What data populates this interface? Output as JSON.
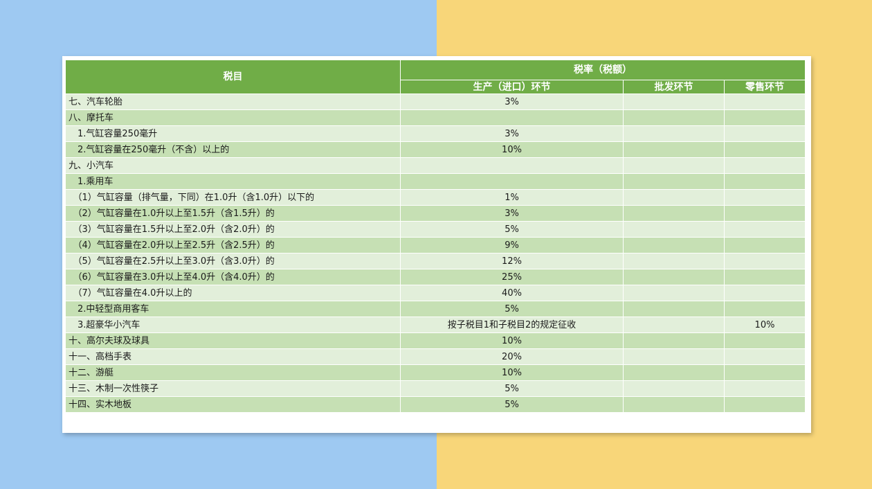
{
  "table": {
    "header": {
      "item": "税目",
      "rate_group": "税率（税额）",
      "production": "生产（进口）环节",
      "wholesale": "批发环节",
      "retail": "零售环节"
    },
    "rows": [
      {
        "item": "七、汽车轮胎",
        "production": "3%",
        "wholesale": "",
        "retail": ""
      },
      {
        "item": "八、摩托车",
        "production": "",
        "wholesale": "",
        "retail": ""
      },
      {
        "item": "　1.气缸容量250毫升",
        "production": "3%",
        "wholesale": "",
        "retail": ""
      },
      {
        "item": "　2.气缸容量在250毫升（不含）以上的",
        "production": "10%",
        "wholesale": "",
        "retail": ""
      },
      {
        "item": "九、小汽车",
        "production": "",
        "wholesale": "",
        "retail": ""
      },
      {
        "item": "　1.乘用车",
        "production": "",
        "wholesale": "",
        "retail": ""
      },
      {
        "item": "　（1）气缸容量（排气量，下同）在1.0升（含1.0升）以下的",
        "production": "1%",
        "wholesale": "",
        "retail": ""
      },
      {
        "item": "　（2）气缸容量在1.0升以上至1.5升（含1.5升）的",
        "production": "3%",
        "wholesale": "",
        "retail": ""
      },
      {
        "item": "　（3）气缸容量在1.5升以上至2.0升（含2.0升）的",
        "production": "5%",
        "wholesale": "",
        "retail": ""
      },
      {
        "item": "　（4）气缸容量在2.0升以上至2.5升（含2.5升）的",
        "production": "9%",
        "wholesale": "",
        "retail": ""
      },
      {
        "item": "　（5）气缸容量在2.5升以上至3.0升（含3.0升）的",
        "production": "12%",
        "wholesale": "",
        "retail": ""
      },
      {
        "item": "　（6）气缸容量在3.0升以上至4.0升（含4.0升）的",
        "production": "25%",
        "wholesale": "",
        "retail": ""
      },
      {
        "item": "　（7）气缸容量在4.0升以上的",
        "production": "40%",
        "wholesale": "",
        "retail": ""
      },
      {
        "item": "　2.中轻型商用客车",
        "production": "5%",
        "wholesale": "",
        "retail": ""
      },
      {
        "item": "　3.超豪华小汽车",
        "production": "按子税目1和子税目2的规定征收",
        "wholesale": "",
        "retail": "10%"
      },
      {
        "item": "十、高尔夫球及球具",
        "production": "10%",
        "wholesale": "",
        "retail": ""
      },
      {
        "item": "十一、高档手表",
        "production": "20%",
        "wholesale": "",
        "retail": ""
      },
      {
        "item": "十二、游艇",
        "production": "10%",
        "wholesale": "",
        "retail": ""
      },
      {
        "item": "十三、木制一次性筷子",
        "production": "5%",
        "wholesale": "",
        "retail": ""
      },
      {
        "item": "十四、实木地板",
        "production": "5%",
        "wholesale": "",
        "retail": ""
      }
    ]
  },
  "colors": {
    "header_bg": "#70ad47",
    "row_light": "#e2efda",
    "row_dark": "#c6e0b4",
    "bg_left": "#9ec9f2",
    "bg_right": "#f8d679"
  }
}
